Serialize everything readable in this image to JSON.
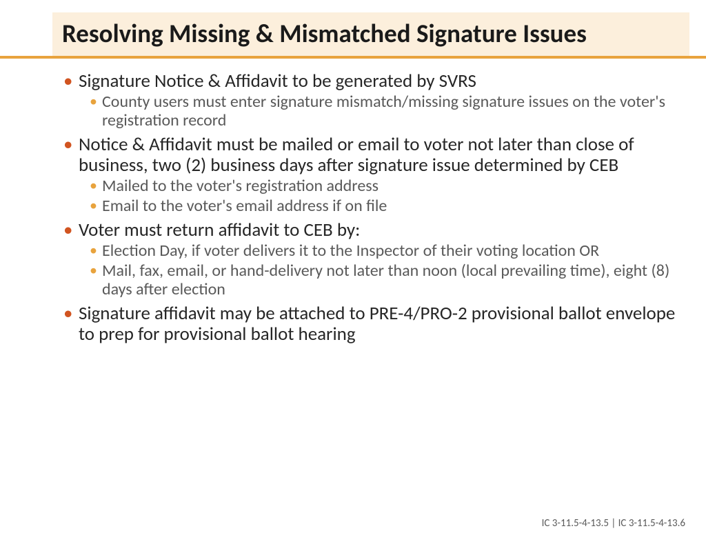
{
  "colors": {
    "title_bg": "#fcefdc",
    "accent_rule": "#e8a33d",
    "bullet_l1": "#d15420",
    "bullet_l2": "#e8a33d",
    "body_text": "#262626",
    "sub_text": "#595959"
  },
  "title": "Resolving Missing & Mismatched Signature Issues",
  "bullets": [
    {
      "text": "Signature Notice & Affidavit to be generated by SVRS",
      "sub": [
        "County users must enter signature mismatch/missing signature issues on the voter's registration record"
      ]
    },
    {
      "text": "Notice & Affidavit must be mailed or email to voter not later than close of business, two (2) business days after signature issue determined by CEB",
      "sub": [
        "Mailed to the voter's registration address",
        "Email to the voter's email address if on file"
      ]
    },
    {
      "text": "Voter must return affidavit to CEB by:",
      "sub": [
        "Election Day, if voter delivers it to the Inspector of their voting location OR",
        "Mail, fax, email, or hand-delivery not later than noon (local prevailing time), eight (8) days after election"
      ]
    },
    {
      "text": "Signature affidavit may be attached to PRE-4/PRO-2 provisional ballot envelope to prep for provisional ballot hearing",
      "sub": []
    }
  ],
  "citation": "IC 3-11.5-4-13.5 | IC 3-11.5-4-13.6"
}
